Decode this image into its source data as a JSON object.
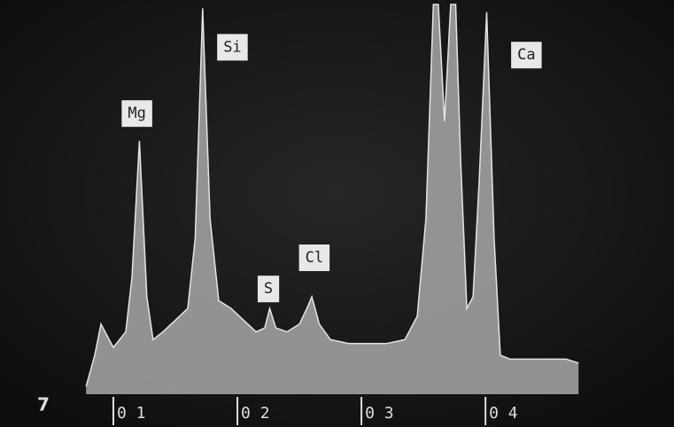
{
  "chart_data": {
    "type": "area",
    "x": [
      0.78,
      0.85,
      0.9,
      1.0,
      1.05,
      1.1,
      1.15,
      1.21,
      1.27,
      1.32,
      1.4,
      1.5,
      1.6,
      1.66,
      1.72,
      1.78,
      1.85,
      1.95,
      2.05,
      2.15,
      2.22,
      2.26,
      2.31,
      2.4,
      2.5,
      2.56,
      2.6,
      2.66,
      2.75,
      2.9,
      3.05,
      3.2,
      3.35,
      3.45,
      3.52,
      3.58,
      3.62,
      3.67,
      3.72,
      3.76,
      3.8,
      3.85,
      3.9,
      3.95,
      4.01,
      4.07,
      4.12,
      4.2,
      4.35,
      4.5,
      4.65,
      4.75
    ],
    "values": [
      2,
      10,
      18,
      12,
      14,
      16,
      30,
      65,
      25,
      14,
      16,
      19,
      22,
      40,
      99,
      45,
      24,
      22,
      19,
      16,
      17,
      22,
      17,
      16,
      18,
      22,
      25,
      18,
      14,
      13,
      13,
      13,
      14,
      20,
      45,
      100,
      100,
      70,
      100,
      100,
      60,
      22,
      25,
      55,
      98,
      40,
      10,
      9,
      9,
      9,
      9,
      8
    ],
    "color": "#a8a8a8",
    "xlim": [
      0.086,
      5.52
    ],
    "ylim": [
      0,
      100
    ],
    "xticks": [
      {
        "value": 1,
        "label": "0 1"
      },
      {
        "value": 2,
        "label": "0 2"
      },
      {
        "value": 3,
        "label": "0 3"
      },
      {
        "value": 4,
        "label": "0 4"
      }
    ],
    "annotations": [
      {
        "text": "Mg",
        "x": 1.19,
        "y": 72
      },
      {
        "text": "Si",
        "x": 1.96,
        "y": 89
      },
      {
        "text": "S",
        "x": 2.25,
        "y": 27
      },
      {
        "text": "Cl",
        "x": 2.62,
        "y": 35
      },
      {
        "text": "Ca",
        "x": 4.33,
        "y": 87
      }
    ],
    "corner_label": "7"
  }
}
